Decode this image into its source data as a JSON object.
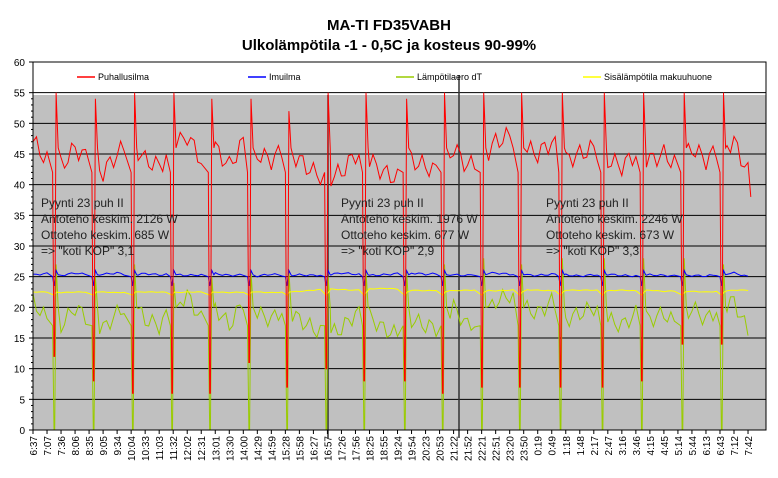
{
  "chart_data": {
    "type": "line",
    "title": "MA-TI FD35VABH",
    "subtitle": "Ulkolämpötila -1 - 0,5C ja kosteus 90-99%",
    "xlabel": "",
    "ylabel": "",
    "ylim": [
      0,
      60
    ],
    "yticks": [
      0,
      5,
      10,
      15,
      20,
      25,
      30,
      35,
      40,
      45,
      50,
      55,
      60
    ],
    "grid": true,
    "legend_position": "top",
    "categories": [
      "6:37",
      "7:07",
      "7:36",
      "8:06",
      "8:35",
      "9:05",
      "9:34",
      "10:04",
      "10:33",
      "11:03",
      "11:32",
      "12:02",
      "12:31",
      "13:01",
      "13:30",
      "14:00",
      "14:29",
      "14:59",
      "15:28",
      "15:58",
      "16:27",
      "16:57",
      "17:26",
      "17:56",
      "18:25",
      "18:55",
      "19:24",
      "19:54",
      "20:23",
      "20:53",
      "21:22",
      "21:52",
      "22:21",
      "22:51",
      "23:20",
      "23:50",
      "0:19",
      "0:49",
      "1:18",
      "1:48",
      "2:17",
      "2:47",
      "3:16",
      "3:46",
      "4:15",
      "4:45",
      "5:14",
      "5:44",
      "6:13",
      "6:43",
      "7:12",
      "7:42"
    ],
    "series": [
      {
        "name": "Puhallusilma",
        "color": "#ff0000",
        "values": [
          47,
          44,
          43,
          46,
          44,
          42,
          45,
          47,
          44,
          43,
          46,
          48,
          44,
          46,
          43,
          47,
          45,
          44,
          46,
          44,
          42,
          41,
          42,
          45,
          44,
          42,
          41,
          44,
          43,
          42,
          46,
          43,
          44,
          47,
          48,
          46,
          45,
          47,
          44,
          45,
          46,
          44,
          43,
          45,
          44,
          45,
          43,
          46,
          44,
          46,
          47,
          42
        ]
      },
      {
        "name": "Imuilma",
        "color": "#0000ff",
        "values": [
          25.3,
          25.5,
          25.2,
          25.6,
          25.3,
          25.4,
          25.6,
          25.2,
          25.5,
          25.3,
          25.4,
          25.2,
          25.3,
          25.5,
          25.2,
          25.3,
          25.1,
          25.4,
          25.2,
          25.3,
          25.2,
          25.3,
          25.6,
          25.4,
          25.2,
          25.3,
          25.5,
          25.6,
          25.4,
          25.5,
          25.3,
          25.2,
          25.5,
          25.6,
          25.4,
          25.3,
          25.2,
          25.4,
          25.3,
          25.1,
          25.3,
          25.4,
          25.2,
          25.1,
          25.3,
          25.2,
          25.1,
          25.2,
          25.1,
          25.4,
          25.6,
          25.0
        ]
      },
      {
        "name": "Lämpötilaero dT",
        "color": "#99cc00",
        "values": [
          21,
          18,
          17,
          20,
          18,
          16.5,
          19,
          21,
          18,
          17,
          20,
          22,
          18,
          20,
          17,
          21,
          19,
          18,
          20,
          18,
          16.5,
          15.5,
          16.5,
          19,
          18.5,
          16.5,
          15.5,
          18,
          17,
          16.5,
          20,
          17,
          18,
          21,
          22,
          20,
          19,
          21,
          18,
          19,
          20,
          18,
          17,
          19,
          18,
          19,
          17,
          20,
          18,
          20,
          21,
          16
        ]
      },
      {
        "name": "Sisälämpötila makuuhuone",
        "color": "#ffff00",
        "values": [
          22.5,
          22.5,
          22.4,
          22.5,
          22.5,
          22.5,
          22.4,
          22.5,
          22.5,
          22.5,
          22.4,
          22.5,
          22.5,
          22.5,
          22.4,
          22.5,
          22.5,
          22.4,
          22.5,
          22.6,
          22.8,
          23.0,
          22.9,
          22.8,
          23.0,
          23.1,
          23.0,
          22.8,
          22.7,
          22.8,
          22.7,
          22.8,
          22.8,
          22.7,
          22.8,
          22.9,
          22.8,
          22.7,
          22.8,
          22.8,
          22.8,
          22.7,
          22.8,
          22.7,
          22.8,
          22.6,
          22.7,
          22.6,
          22.5,
          22.6,
          22.8,
          22.8
        ]
      }
    ],
    "defrost_events": [
      {
        "position": 1.5,
        "red_min": 12,
        "red_peak": 55,
        "dT_peak": 27
      },
      {
        "position": 4.3,
        "red_min": 8,
        "red_peak": 54,
        "dT_peak": 25
      },
      {
        "position": 7.1,
        "red_min": 6,
        "red_peak": 55,
        "dT_peak": 27
      },
      {
        "position": 9.9,
        "red_min": 6,
        "red_peak": 55,
        "dT_peak": 24
      },
      {
        "position": 12.6,
        "red_min": 6,
        "red_peak": 54,
        "dT_peak": 25
      },
      {
        "position": 15.4,
        "red_min": 11,
        "red_peak": 54,
        "dT_peak": 26
      },
      {
        "position": 18.1,
        "red_min": 7,
        "red_peak": 52,
        "dT_peak": 26
      },
      {
        "position": 20.9,
        "red_min": 10,
        "red_peak": 55,
        "dT_peak": 25
      },
      {
        "position": 23.6,
        "red_min": 8,
        "red_peak": 55,
        "dT_peak": 26
      },
      {
        "position": 26.5,
        "red_min": 8,
        "red_peak": 54,
        "dT_peak": 26
      },
      {
        "position": 29.2,
        "red_min": 6,
        "red_peak": 55,
        "dT_peak": 27
      },
      {
        "position": 32.0,
        "red_min": 7,
        "red_peak": 55,
        "dT_peak": 28
      },
      {
        "position": 34.7,
        "red_min": 7,
        "red_peak": 55,
        "dT_peak": 27
      },
      {
        "position": 37.6,
        "red_min": 7,
        "red_peak": 55,
        "dT_peak": 28
      },
      {
        "position": 40.6,
        "red_min": 7,
        "red_peak": 55,
        "dT_peak": 28
      },
      {
        "position": 43.4,
        "red_min": 8,
        "red_peak": 55,
        "dT_peak": 28
      },
      {
        "position": 46.3,
        "red_min": 14,
        "red_peak": 55,
        "dT_peak": 28
      },
      {
        "position": 49.1,
        "red_min": 14,
        "red_peak": 55,
        "dT_peak": 27
      }
    ],
    "end_value_red": 38,
    "annotations": [
      {
        "lines": [
          "Pyynti 23 puh II",
          "Antoteho keskim. 2126 W",
          "Ottoteho keskim. 685 W",
          "=> \"koti KOP\" 3,1"
        ]
      },
      {
        "lines": [
          "Pyynti 23 puh II",
          "Antoteho keskim. 1976 W",
          "Ottoteho keskim. 677 W",
          "=> \"koti KOP\" 2,9"
        ]
      },
      {
        "lines": [
          "Pyynti 23 puh II",
          "Antoteho keskim. 2246 W",
          "Ottoteho keskim. 673 W",
          "=> \"koti KOP\" 3,3"
        ]
      }
    ]
  }
}
